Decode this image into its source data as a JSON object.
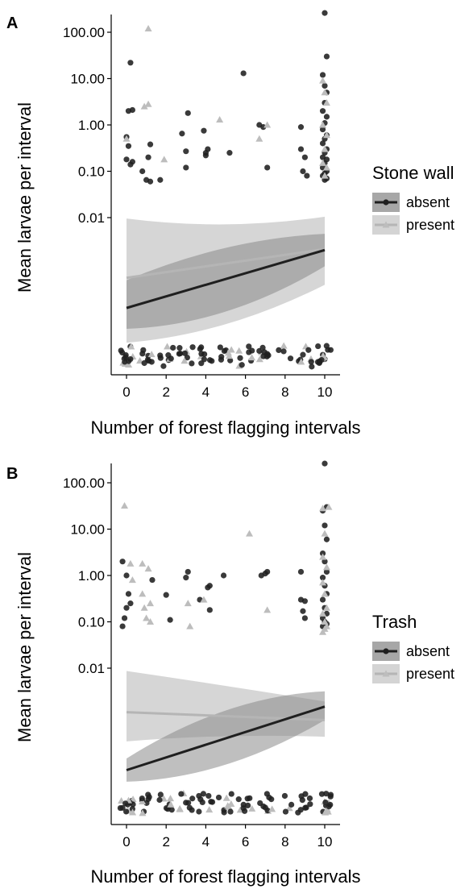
{
  "colors": {
    "absent": "#1f1f1f",
    "present": "#bdbdbd",
    "ribbon_absent": "#8a8a8a",
    "ribbon_present": "#cfcfcf"
  },
  "chart_data": [
    {
      "panel": "A",
      "type": "scatter",
      "xlabel": "Number of forest flagging intervals",
      "ylabel": "Mean larvae per interval",
      "x_ticks": [
        0,
        2,
        4,
        6,
        8,
        10
      ],
      "y_ticks": [
        "100.00",
        "10.00",
        "1.00",
        "0.10",
        "0.01"
      ],
      "y_scale": "log",
      "legend": {
        "title": "Stone wall",
        "entries": [
          "absent",
          "present"
        ],
        "placement": "right"
      },
      "trend": {
        "absent": {
          "y0": -3.95,
          "y1": -2.7,
          "band_lo0": -4.4,
          "band_hi0": -3.35,
          "band_lo1": -3.05,
          "band_hi1": -2.35
        },
        "present": {
          "y0": -3.3,
          "y1": -2.68,
          "band_lo0": -4.7,
          "band_hi0": -2.02,
          "band_lo1": -3.45,
          "band_hi1": -1.98
        }
      },
      "series": [
        {
          "name": "absent",
          "points": [
            [
              0.2,
              22
            ],
            [
              0.1,
              2.0
            ],
            [
              0.3,
              2.1
            ],
            [
              0.0,
              0.55
            ],
            [
              0.1,
              0.35
            ],
            [
              0.0,
              0.18
            ],
            [
              0.3,
              0.16
            ],
            [
              0.2,
              0.14
            ],
            [
              0.8,
              0.1
            ],
            [
              1.0,
              0.065
            ],
            [
              1.2,
              0.06
            ],
            [
              1.2,
              0.38
            ],
            [
              1.1,
              0.2
            ],
            [
              1.7,
              0.065
            ],
            [
              2.8,
              0.65
            ],
            [
              3.0,
              0.27
            ],
            [
              3.1,
              1.8
            ],
            [
              3.0,
              0.12
            ],
            [
              3.9,
              0.75
            ],
            [
              4.0,
              0.22
            ],
            [
              4.1,
              0.3
            ],
            [
              4.0,
              0.25
            ],
            [
              5.2,
              0.25
            ],
            [
              5.9,
              13
            ],
            [
              6.7,
              1.0
            ],
            [
              6.9,
              0.9
            ],
            [
              7.1,
              0.12
            ],
            [
              8.8,
              0.9
            ],
            [
              8.8,
              0.3
            ],
            [
              9.0,
              0.2
            ],
            [
              8.9,
              0.1
            ],
            [
              9.1,
              0.08
            ],
            [
              10.0,
              260
            ],
            [
              10.1,
              30
            ],
            [
              9.9,
              12
            ],
            [
              10.0,
              7
            ],
            [
              10.1,
              5
            ],
            [
              10.0,
              3
            ],
            [
              9.9,
              2
            ],
            [
              10.1,
              1.5
            ],
            [
              10.0,
              1.1
            ],
            [
              9.9,
              0.8
            ],
            [
              10.1,
              0.6
            ],
            [
              10.0,
              0.5
            ],
            [
              9.9,
              0.4
            ],
            [
              10.1,
              0.3
            ],
            [
              10.0,
              0.25
            ],
            [
              9.9,
              0.2
            ],
            [
              10.1,
              0.18
            ],
            [
              10.0,
              0.15
            ],
            [
              9.9,
              0.12
            ],
            [
              10.1,
              0.1
            ],
            [
              10.0,
              0.09
            ],
            [
              9.9,
              0.08
            ],
            [
              10.1,
              0.07
            ],
            [
              10.0,
              0.065
            ]
          ]
        },
        {
          "name": "present",
          "points": [
            [
              1.1,
              120
            ],
            [
              0.9,
              2.5
            ],
            [
              1.1,
              2.8
            ],
            [
              0.0,
              0.5
            ],
            [
              1.9,
              0.18
            ],
            [
              4.7,
              1.3
            ],
            [
              6.7,
              0.5
            ],
            [
              7.1,
              1.0
            ],
            [
              9.9,
              9
            ],
            [
              10.0,
              5
            ],
            [
              10.1,
              3
            ],
            [
              9.9,
              1.0
            ],
            [
              10.1,
              0.6
            ],
            [
              10.0,
              0.3
            ],
            [
              9.9,
              0.15
            ],
            [
              10.1,
              0.12
            ],
            [
              10.0,
              0.08
            ]
          ]
        }
      ]
    },
    {
      "panel": "B",
      "type": "scatter",
      "xlabel": "Number of forest flagging intervals",
      "ylabel": "Mean larvae per interval",
      "x_ticks": [
        0,
        2,
        4,
        6,
        8,
        10
      ],
      "y_ticks": [
        "100.00",
        "10.00",
        "1.00",
        "0.10",
        "0.01"
      ],
      "y_scale": "log",
      "legend": {
        "title": "Trash",
        "entries": [
          "absent",
          "present"
        ],
        "placement": "right"
      },
      "trend": {
        "absent": {
          "y0": -4.2,
          "y1": -2.83,
          "band_lo0": -4.45,
          "band_hi0": -3.95,
          "band_lo1": -3.12,
          "band_hi1": -2.5
        },
        "present": {
          "y0": -2.95,
          "y1": -3.12,
          "band_lo0": -3.58,
          "band_hi0": -2.06,
          "band_lo1": -3.48,
          "band_hi1": -2.72
        }
      },
      "series": [
        {
          "name": "absent",
          "points": [
            [
              -0.2,
              2.0
            ],
            [
              0.0,
              1.0
            ],
            [
              0.1,
              0.4
            ],
            [
              0.2,
              0.25
            ],
            [
              0.0,
              0.2
            ],
            [
              -0.1,
              0.12
            ],
            [
              -0.2,
              0.08
            ],
            [
              1.3,
              0.8
            ],
            [
              2.0,
              0.38
            ],
            [
              2.2,
              0.11
            ],
            [
              3.1,
              1.2
            ],
            [
              3.0,
              0.9
            ],
            [
              3.7,
              0.3
            ],
            [
              4.1,
              0.55
            ],
            [
              4.2,
              0.6
            ],
            [
              4.2,
              0.18
            ],
            [
              4.9,
              1.0
            ],
            [
              6.8,
              1.0
            ],
            [
              7.0,
              1.1
            ],
            [
              7.1,
              1.2
            ],
            [
              8.8,
              1.2
            ],
            [
              8.8,
              0.3
            ],
            [
              9.0,
              0.28
            ],
            [
              8.9,
              0.17
            ],
            [
              9.0,
              0.12
            ],
            [
              10.0,
              260
            ],
            [
              10.1,
              30
            ],
            [
              9.9,
              25
            ],
            [
              10.0,
              12
            ],
            [
              10.1,
              6
            ],
            [
              9.9,
              3
            ],
            [
              10.0,
              2
            ],
            [
              10.1,
              1.2
            ],
            [
              9.9,
              0.9
            ],
            [
              10.0,
              0.6
            ],
            [
              10.1,
              0.4
            ],
            [
              9.9,
              0.3
            ],
            [
              10.0,
              0.2
            ],
            [
              10.1,
              0.15
            ],
            [
              9.9,
              0.12
            ],
            [
              10.0,
              0.1
            ],
            [
              10.1,
              0.09
            ],
            [
              9.9,
              0.08
            ]
          ]
        },
        {
          "name": "present",
          "points": [
            [
              -0.1,
              32
            ],
            [
              0.2,
              1.8
            ],
            [
              0.8,
              1.8
            ],
            [
              1.1,
              1.4
            ],
            [
              0.3,
              0.8
            ],
            [
              0.9,
              0.2
            ],
            [
              1.0,
              0.12
            ],
            [
              1.2,
              0.1
            ],
            [
              1.2,
              0.25
            ],
            [
              0.8,
              0.4
            ],
            [
              3.1,
              0.25
            ],
            [
              3.2,
              0.08
            ],
            [
              3.9,
              0.3
            ],
            [
              6.2,
              8
            ],
            [
              7.1,
              0.18
            ],
            [
              9.9,
              28
            ],
            [
              10.2,
              30
            ],
            [
              10.0,
              8
            ],
            [
              9.9,
              2.5
            ],
            [
              10.1,
              1.5
            ],
            [
              9.9,
              0.7
            ],
            [
              10.0,
              0.4
            ],
            [
              10.1,
              0.2
            ],
            [
              9.9,
              0.15
            ],
            [
              10.0,
              0.1
            ],
            [
              10.1,
              0.08
            ],
            [
              9.9,
              0.06
            ],
            [
              10.0,
              0.07
            ]
          ]
        }
      ]
    }
  ]
}
